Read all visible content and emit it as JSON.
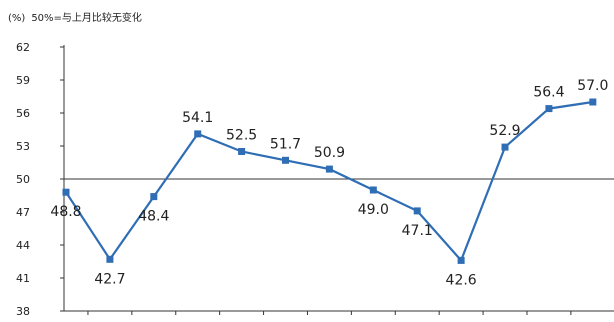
{
  "chart_data": {
    "type": "line",
    "title": "",
    "unit_label": "(%)",
    "reference_note": "50%=与上月比较无变化",
    "xlabel": "",
    "ylabel": "",
    "ylim": [
      38,
      62
    ],
    "yticks": [
      38,
      41,
      44,
      47,
      50,
      53,
      56,
      59,
      62
    ],
    "reference_line": 50,
    "grid": false,
    "series": [
      {
        "color": "#2f6db5",
        "values": [
          48.8,
          42.7,
          48.4,
          54.1,
          52.5,
          51.7,
          50.9,
          49.0,
          47.1,
          42.6,
          52.9,
          56.4,
          57.0
        ],
        "labels": [
          "48.8",
          "42.7",
          "48.4",
          "54.1",
          "52.5",
          "51.7",
          "50.9",
          "49.0",
          "47.1",
          "42.6",
          "52.9",
          "56.4",
          "57.0"
        ]
      }
    ]
  }
}
